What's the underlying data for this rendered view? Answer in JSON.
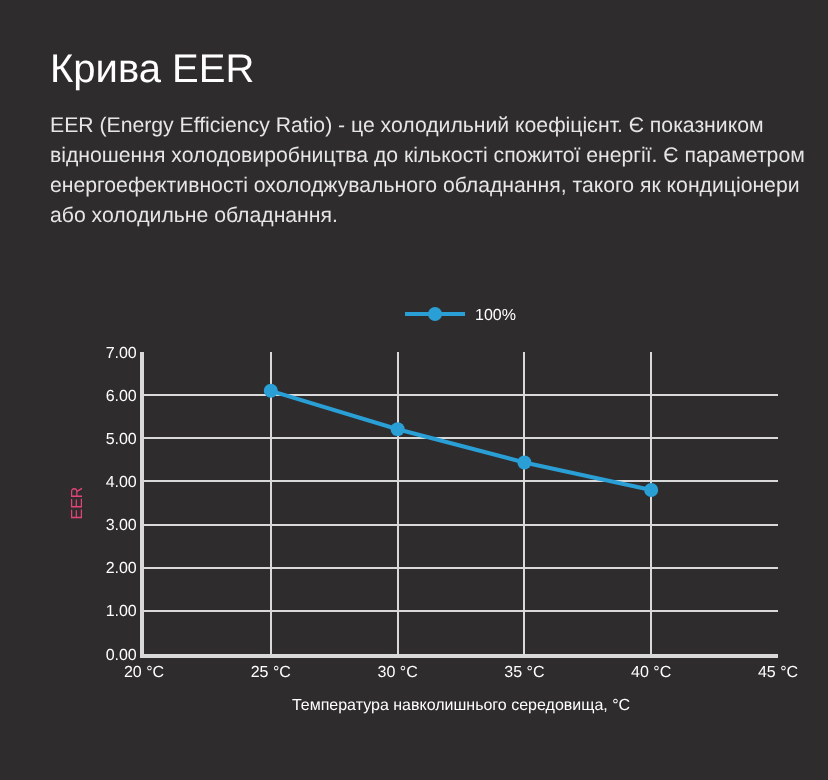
{
  "chart_data": {
    "type": "line",
    "title": "Крива EER",
    "subtitle": "EER (Energy Efficiency Ratio) - це холодильний коефіцієнт. Є показником відношення холодовиробництва до кількості спожитої енергії. Є параметром енергоефективності охолоджувального обладнання, такого як кондиціонери або холодильне обладнання.",
    "xlabel": "Температура навколишнього середовища, °C",
    "ylabel": "EER",
    "x": [
      25,
      30,
      35,
      40
    ],
    "series": [
      {
        "name": "100%",
        "color": "#2a9fd6",
        "values": [
          6.1,
          5.21,
          4.44,
          3.8
        ]
      }
    ],
    "xlim": [
      20,
      45
    ],
    "xticks": [
      {
        "value": 20,
        "label": "20 °C"
      },
      {
        "value": 25,
        "label": "25 °C"
      },
      {
        "value": 30,
        "label": "30 °C"
      },
      {
        "value": 35,
        "label": "35 °C"
      },
      {
        "value": 40,
        "label": "40 °C"
      },
      {
        "value": 45,
        "label": "45 °C"
      }
    ],
    "ylim": [
      0,
      7
    ],
    "yticks": [
      {
        "value": 0,
        "label": "0.00"
      },
      {
        "value": 1,
        "label": "1.00"
      },
      {
        "value": 2,
        "label": "2.00"
      },
      {
        "value": 3,
        "label": "3.00"
      },
      {
        "value": 4,
        "label": "4.00"
      },
      {
        "value": 5,
        "label": "5.00"
      },
      {
        "value": 6,
        "label": "6.00"
      },
      {
        "value": 7,
        "label": "7.00"
      }
    ],
    "grid": true,
    "legend": "top",
    "marker": "circle",
    "line_style": "solid"
  }
}
